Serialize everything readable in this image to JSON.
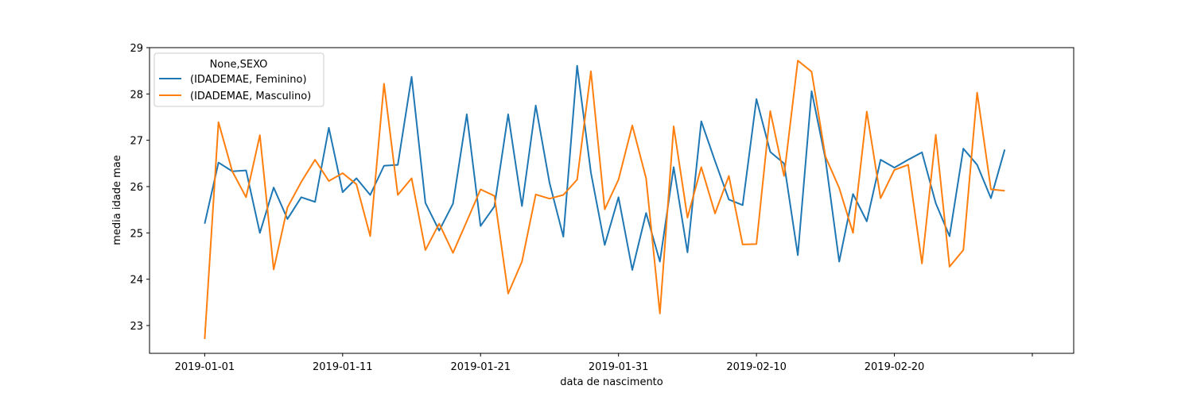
{
  "chart_data": {
    "type": "line",
    "title": "",
    "xlabel": "data de nascimento",
    "ylabel": "media idade mae",
    "x_start": "2019-01-01",
    "x_end": "2019-02-28",
    "xlim": [
      "2018-12-28",
      "2019-03-05"
    ],
    "ylim": [
      22.4,
      29.0
    ],
    "x_ticks": [
      "2019-01-01",
      "2019-01-11",
      "2019-01-21",
      "2019-01-31",
      "2019-02-10",
      "2019-02-20",
      "2019-03-02"
    ],
    "x_tick_labels": [
      "2019-01-01",
      "2019-01-11",
      "2019-01-21",
      "2019-01-31",
      "2019-02-10",
      "2019-02-20",
      ""
    ],
    "y_ticks": [
      23,
      24,
      25,
      26,
      27,
      28,
      29
    ],
    "grid": false,
    "legend": {
      "title": "None,SEXO",
      "placement": "top-left"
    },
    "series": [
      {
        "name": "(IDADEMAE, Feminino)",
        "color": "#1f77b4",
        "values": [
          25.2,
          26.52,
          26.33,
          26.35,
          25.0,
          25.98,
          25.3,
          25.77,
          25.67,
          27.27,
          25.88,
          26.18,
          25.82,
          26.45,
          26.47,
          28.37,
          25.65,
          25.05,
          25.63,
          27.56,
          25.15,
          25.57,
          27.56,
          25.58,
          27.75,
          26.08,
          24.92,
          28.61,
          26.3,
          24.74,
          25.77,
          24.2,
          25.43,
          24.38,
          26.42,
          24.58,
          27.41,
          26.55,
          25.72,
          25.6,
          27.89,
          26.75,
          26.5,
          24.52,
          28.06,
          26.6,
          24.38,
          25.84,
          25.25,
          26.58,
          26.41,
          26.58,
          26.74,
          25.64,
          24.93,
          26.82,
          26.47,
          25.75,
          26.8
        ]
      },
      {
        "name": "(IDADEMAE, Masculino)",
        "color": "#ff7f0e",
        "values": [
          22.71,
          27.39,
          26.33,
          25.77,
          27.11,
          24.21,
          25.55,
          26.1,
          26.58,
          26.12,
          26.29,
          26.05,
          24.93,
          28.22,
          25.82,
          26.18,
          24.63,
          25.2,
          24.57,
          25.25,
          25.94,
          25.8,
          23.69,
          24.38,
          25.83,
          25.74,
          25.82,
          26.15,
          28.49,
          25.51,
          26.15,
          27.32,
          26.18,
          23.26,
          27.3,
          25.33,
          26.42,
          25.42,
          26.23,
          24.75,
          24.76,
          27.63,
          26.23,
          28.72,
          28.48,
          26.65,
          25.97,
          25.0,
          27.62,
          25.75,
          26.36,
          26.47,
          24.34,
          27.12,
          24.27,
          24.63,
          28.03,
          25.94,
          25.91
        ]
      }
    ]
  }
}
